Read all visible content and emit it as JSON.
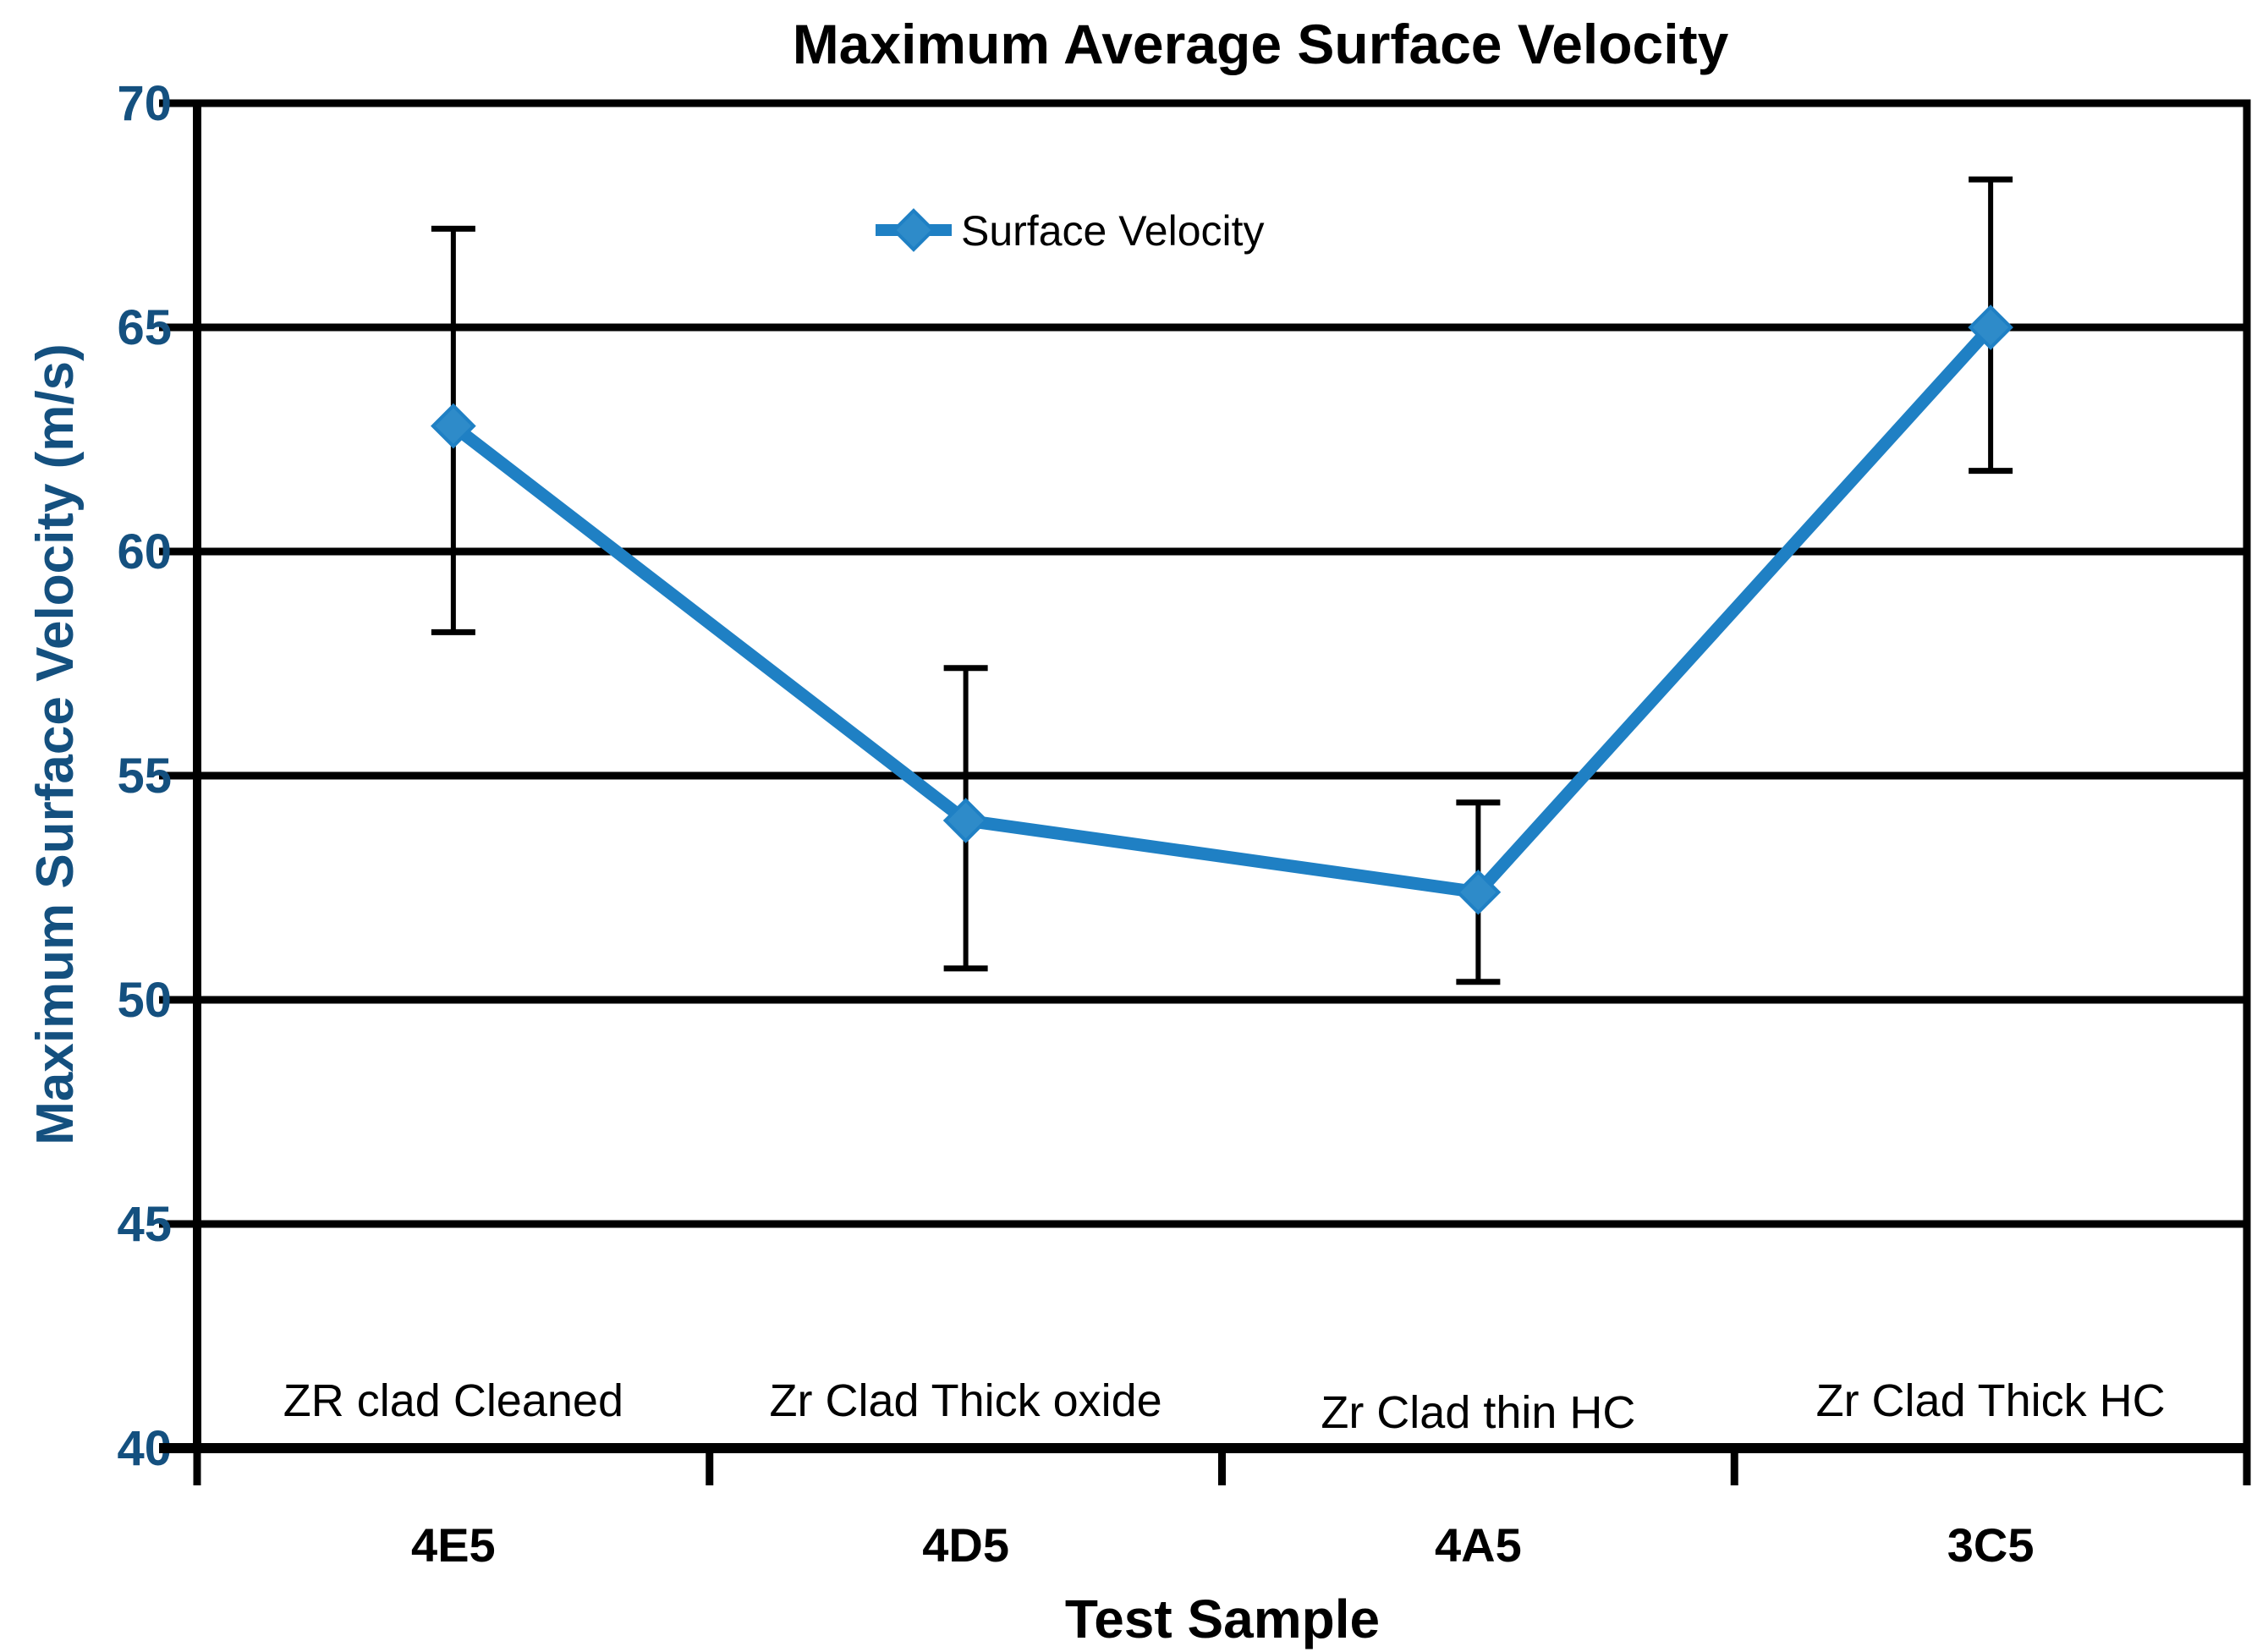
{
  "chart_data": {
    "type": "line",
    "title": "Maximum Average Surface Velocity",
    "xlabel": "Test Sample",
    "ylabel": "Maximum Surface Velocity (m/s)",
    "categories": [
      "4E5",
      "4D5",
      "4A5",
      "3C5"
    ],
    "category_annotations": [
      "ZR clad Cleaned",
      "Zr Clad Thick oxide",
      "Zr Clad thin HC",
      "Zr Clad Thick HC"
    ],
    "series": [
      {
        "name": "Surface Velocity",
        "values": [
          62.8,
          54.0,
          52.4,
          65.0
        ],
        "error_bar_upper": [
          67.2,
          57.4,
          54.4,
          68.3
        ],
        "error_bar_lower": [
          58.2,
          50.7,
          50.4,
          61.8
        ]
      }
    ],
    "ylim": [
      40,
      70
    ],
    "yticks": [
      70,
      65,
      60,
      55,
      50,
      45,
      40
    ],
    "grid": "horizontal-major",
    "marker": "diamond",
    "legend": {
      "label": "Surface Velocity",
      "position": "top-center",
      "marker": "diamond"
    },
    "colors": {
      "series_line": "#1F80C4",
      "marker_fill": "#2E8BC9",
      "y_axis_text": "#14507F",
      "axis_and_grid": "#000000",
      "title_text": "#000000",
      "background": "#FFFFFF"
    }
  }
}
